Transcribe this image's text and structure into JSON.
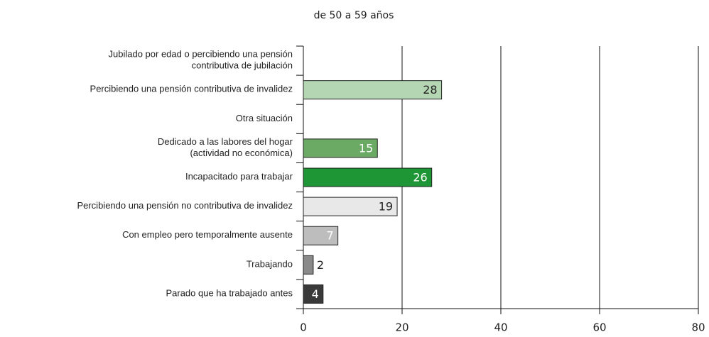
{
  "chart_data": {
    "type": "bar",
    "orientation": "horizontal",
    "title": "de 50 a 59 años",
    "categories": [
      "Jubilado por edad o percibiendo una pensión\ncontributiva de jubilación",
      "Percibiendo una pensión contributiva de invalidez",
      "Otra situación",
      "Dedicado a las labores del hogar\n(actividad no económica)",
      "Incapacitado para trabajar",
      "Percibiendo una pensión no contributiva de invalidez",
      "Con empleo pero temporalmente ausente",
      "Trabajando",
      "Parado que ha trabajado antes"
    ],
    "values": [
      null,
      28,
      null,
      15,
      26,
      19,
      7,
      2,
      4
    ],
    "colors": [
      "#ffffff",
      "#b5d6b2",
      "#ffffff",
      "#6aaa64",
      "#1e9636",
      "#e8e8e8",
      "#bdbdbd",
      "#8a8a8a",
      "#3a3a3a"
    ],
    "label_colors": [
      "#222222",
      "#222222",
      "#222222",
      "#ffffff",
      "#ffffff",
      "#222222",
      "#ffffff",
      "#222222",
      "#ffffff"
    ],
    "xlim": [
      0,
      80
    ],
    "xticks": [
      0,
      20,
      40,
      60,
      80
    ],
    "grid": true
  }
}
